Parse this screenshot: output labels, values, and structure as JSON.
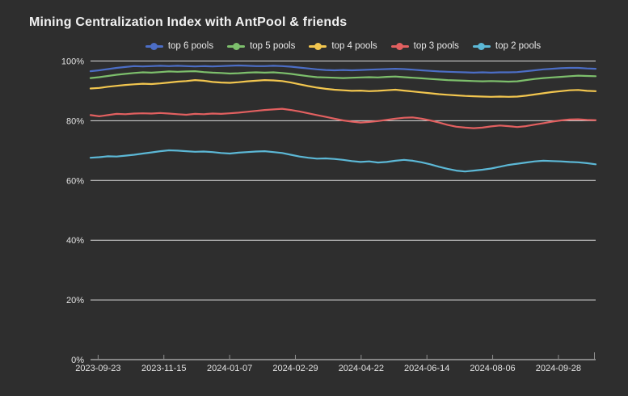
{
  "chart": {
    "title": "Mining Centralization Index with AntPool & friends"
  },
  "colors": {
    "background": "#2e2e2e",
    "grid": "#dcdcdc",
    "axis": "#bdbdbd",
    "tick": "#8f8f8f",
    "text": "#e2e2e2",
    "title_text": "#f2f2f2"
  },
  "chart_data": {
    "type": "line",
    "title": "Mining Centralization Index with AntPool & friends",
    "xlabel": "",
    "ylabel": "",
    "ylim": [
      0,
      100
    ],
    "y_unit": "%",
    "grid": true,
    "legend_position": "top-center",
    "ytick_values": [
      0,
      20,
      40,
      60,
      80,
      100
    ],
    "ytick_labels": [
      "0%",
      "20%",
      "40%",
      "60%",
      "80%",
      "100%"
    ],
    "xtick_labels": [
      "2023-09-23",
      "2023-11-15",
      "2024-01-07",
      "2024-02-29",
      "2024-04-22",
      "2024-06-14",
      "2024-08-06",
      "2024-09-28"
    ],
    "x_dates": [
      "2023-09-17",
      "2023-09-24",
      "2023-10-01",
      "2023-10-08",
      "2023-10-15",
      "2023-10-22",
      "2023-10-29",
      "2023-11-05",
      "2023-11-12",
      "2023-11-19",
      "2023-11-26",
      "2023-12-03",
      "2023-12-10",
      "2023-12-17",
      "2023-12-24",
      "2023-12-31",
      "2024-01-07",
      "2024-01-14",
      "2024-01-21",
      "2024-01-28",
      "2024-02-04",
      "2024-02-11",
      "2024-02-18",
      "2024-02-25",
      "2024-03-03",
      "2024-03-10",
      "2024-03-17",
      "2024-03-24",
      "2024-03-31",
      "2024-04-07",
      "2024-04-14",
      "2024-04-21",
      "2024-04-28",
      "2024-05-05",
      "2024-05-12",
      "2024-05-19",
      "2024-05-26",
      "2024-06-02",
      "2024-06-09",
      "2024-06-16",
      "2024-06-23",
      "2024-06-30",
      "2024-07-07",
      "2024-07-14",
      "2024-07-21",
      "2024-07-28",
      "2024-08-04",
      "2024-08-11",
      "2024-08-18",
      "2024-08-25",
      "2024-09-01",
      "2024-09-08",
      "2024-09-15",
      "2024-09-22",
      "2024-09-29",
      "2024-10-06",
      "2024-10-13",
      "2024-10-20",
      "2024-10-27"
    ],
    "series": [
      {
        "name": "top 6 pools",
        "color": "#4c6ec6",
        "values": [
          96.6,
          96.9,
          97.3,
          97.7,
          98.0,
          98.3,
          98.2,
          98.3,
          98.4,
          98.3,
          98.4,
          98.3,
          98.2,
          98.3,
          98.2,
          98.3,
          98.4,
          98.5,
          98.4,
          98.3,
          98.3,
          98.4,
          98.3,
          98.1,
          97.8,
          97.5,
          97.2,
          97.0,
          96.9,
          97.0,
          96.9,
          97.0,
          97.1,
          97.2,
          97.3,
          97.4,
          97.3,
          97.1,
          96.9,
          96.7,
          96.5,
          96.4,
          96.3,
          96.2,
          96.1,
          96.2,
          96.1,
          96.2,
          96.2,
          96.3,
          96.6,
          96.9,
          97.2,
          97.4,
          97.6,
          97.7,
          97.7,
          97.5,
          97.4
        ]
      },
      {
        "name": "top 5 pools",
        "color": "#7dbf6c",
        "values": [
          94.3,
          94.6,
          95.0,
          95.4,
          95.7,
          96.0,
          96.2,
          96.1,
          96.3,
          96.5,
          96.4,
          96.5,
          96.6,
          96.3,
          96.1,
          96.0,
          95.8,
          95.9,
          96.1,
          96.2,
          96.1,
          96.2,
          96.0,
          95.7,
          95.3,
          94.9,
          94.6,
          94.5,
          94.4,
          94.3,
          94.4,
          94.5,
          94.6,
          94.5,
          94.7,
          94.8,
          94.6,
          94.4,
          94.2,
          94.0,
          93.8,
          93.6,
          93.5,
          93.4,
          93.3,
          93.2,
          93.3,
          93.2,
          93.1,
          93.2,
          93.6,
          94.0,
          94.3,
          94.5,
          94.7,
          94.9,
          95.1,
          95.0,
          94.9
        ]
      },
      {
        "name": "top 4 pools",
        "color": "#f2c64f",
        "values": [
          90.8,
          91.0,
          91.4,
          91.7,
          92.0,
          92.2,
          92.4,
          92.3,
          92.5,
          92.8,
          93.1,
          93.3,
          93.6,
          93.4,
          93.0,
          92.8,
          92.7,
          92.9,
          93.2,
          93.4,
          93.6,
          93.5,
          93.3,
          92.8,
          92.2,
          91.6,
          91.1,
          90.7,
          90.4,
          90.2,
          90.0,
          90.1,
          89.9,
          90.0,
          90.2,
          90.4,
          90.1,
          89.8,
          89.5,
          89.2,
          88.9,
          88.7,
          88.5,
          88.3,
          88.2,
          88.1,
          88.0,
          88.1,
          88.0,
          88.1,
          88.4,
          88.8,
          89.2,
          89.6,
          89.9,
          90.2,
          90.3,
          90.0,
          89.9
        ]
      },
      {
        "name": "top 3 pools",
        "color": "#e26060",
        "values": [
          81.9,
          81.5,
          81.9,
          82.3,
          82.2,
          82.4,
          82.5,
          82.4,
          82.6,
          82.4,
          82.2,
          82.0,
          82.3,
          82.2,
          82.4,
          82.3,
          82.5,
          82.7,
          83.0,
          83.3,
          83.6,
          83.8,
          84.0,
          83.6,
          83.1,
          82.5,
          81.9,
          81.3,
          80.7,
          80.1,
          79.7,
          79.4,
          79.6,
          79.9,
          80.3,
          80.7,
          81.0,
          81.1,
          80.7,
          80.1,
          79.4,
          78.6,
          78.0,
          77.7,
          77.5,
          77.7,
          78.1,
          78.4,
          78.2,
          77.9,
          78.2,
          78.7,
          79.2,
          79.7,
          80.1,
          80.4,
          80.5,
          80.3,
          80.2
        ]
      },
      {
        "name": "top 2 pools",
        "color": "#5cb8d6",
        "values": [
          67.6,
          67.8,
          68.1,
          68.0,
          68.3,
          68.6,
          69.0,
          69.4,
          69.8,
          70.1,
          70.0,
          69.8,
          69.6,
          69.7,
          69.5,
          69.2,
          69.0,
          69.3,
          69.5,
          69.7,
          69.8,
          69.5,
          69.2,
          68.6,
          68.0,
          67.6,
          67.3,
          67.4,
          67.2,
          66.9,
          66.5,
          66.2,
          66.4,
          66.0,
          66.2,
          66.6,
          66.9,
          66.6,
          66.1,
          65.4,
          64.6,
          63.9,
          63.3,
          63.0,
          63.3,
          63.6,
          64.0,
          64.6,
          65.2,
          65.6,
          66.0,
          66.4,
          66.6,
          66.5,
          66.4,
          66.2,
          66.1,
          65.8,
          65.4
        ]
      }
    ]
  }
}
